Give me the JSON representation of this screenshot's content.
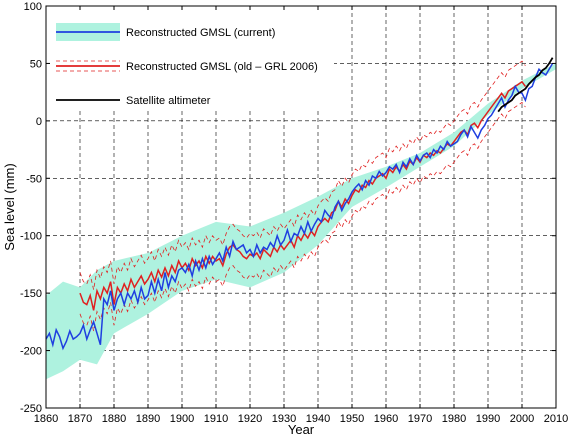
{
  "chart_data": {
    "type": "line",
    "xlabel": "Year",
    "ylabel": "Sea level (mm)",
    "xlim": [
      1860,
      2010
    ],
    "ylim": [
      -250,
      100
    ],
    "x_ticks": [
      1860,
      1870,
      1880,
      1890,
      1900,
      1910,
      1920,
      1930,
      1940,
      1950,
      1960,
      1970,
      1980,
      1990,
      2000,
      2010
    ],
    "y_ticks": [
      -250,
      -200,
      -150,
      -100,
      -50,
      0,
      50,
      100
    ],
    "grid": "dashed",
    "legend": {
      "placement": "top-left",
      "entries": [
        {
          "label": "Reconstructed GMSL (current)",
          "series": "current"
        },
        {
          "label": "Reconstructed GMSL (old – GRL 2006)",
          "series": "old"
        },
        {
          "label": "Satellite altimeter",
          "series": "satellite"
        }
      ]
    },
    "colors": {
      "current": "#1f3fe0",
      "band": "#aef2df",
      "old": "#e02020",
      "satellite": "#000000"
    },
    "bands": [
      {
        "series": "current",
        "x": [
          1860,
          1865,
          1870,
          1875,
          1880,
          1890,
          1900,
          1910,
          1920,
          1930,
          1940,
          1950,
          1960,
          1970,
          1980,
          1990,
          2000,
          2010
        ],
        "upper": [
          -152,
          -140,
          -145,
          -130,
          -122,
          -115,
          -100,
          -88,
          -92,
          -80,
          -66,
          -50,
          -40,
          -28,
          -10,
          15,
          35,
          50
        ],
        "lower": [
          -225,
          -218,
          -208,
          -212,
          -185,
          -168,
          -148,
          -138,
          -145,
          -132,
          -108,
          -75,
          -58,
          -40,
          -22,
          5,
          28,
          45
        ]
      }
    ],
    "series": [
      {
        "name": "Reconstructed GMSL (current)",
        "key": "current",
        "x": [
          1860,
          1861,
          1862,
          1863,
          1864,
          1865,
          1866,
          1867,
          1868,
          1869,
          1870,
          1871,
          1872,
          1873,
          1874,
          1875,
          1876,
          1877,
          1878,
          1879,
          1880,
          1881,
          1882,
          1883,
          1884,
          1885,
          1886,
          1887,
          1888,
          1889,
          1890,
          1891,
          1892,
          1893,
          1894,
          1895,
          1896,
          1897,
          1898,
          1899,
          1900,
          1901,
          1902,
          1903,
          1904,
          1905,
          1906,
          1907,
          1908,
          1909,
          1910,
          1911,
          1912,
          1913,
          1914,
          1915,
          1916,
          1917,
          1918,
          1919,
          1920,
          1921,
          1922,
          1923,
          1924,
          1925,
          1926,
          1927,
          1928,
          1929,
          1930,
          1931,
          1932,
          1933,
          1934,
          1935,
          1936,
          1937,
          1938,
          1939,
          1940,
          1941,
          1942,
          1943,
          1944,
          1945,
          1946,
          1947,
          1948,
          1949,
          1950,
          1951,
          1952,
          1953,
          1954,
          1955,
          1956,
          1957,
          1958,
          1959,
          1960,
          1961,
          1962,
          1963,
          1964,
          1965,
          1966,
          1967,
          1968,
          1969,
          1970,
          1971,
          1972,
          1973,
          1974,
          1975,
          1976,
          1977,
          1978,
          1979,
          1980,
          1981,
          1982,
          1983,
          1984,
          1985,
          1986,
          1987,
          1988,
          1989,
          1990,
          1991,
          1992,
          1993,
          1994,
          1995,
          1996,
          1997,
          1998,
          1999,
          2000,
          2001,
          2002,
          2003,
          2004,
          2005,
          2006,
          2007,
          2008,
          2009
        ],
        "y": [
          -190,
          -185,
          -195,
          -182,
          -188,
          -198,
          -192,
          -183,
          -190,
          -188,
          -185,
          -178,
          -190,
          -182,
          -175,
          -185,
          -195,
          -155,
          -160,
          -148,
          -165,
          -155,
          -150,
          -160,
          -150,
          -155,
          -148,
          -158,
          -145,
          -155,
          -152,
          -140,
          -150,
          -138,
          -148,
          -132,
          -145,
          -135,
          -140,
          -130,
          -128,
          -132,
          -125,
          -135,
          -122,
          -130,
          -120,
          -128,
          -118,
          -125,
          -120,
          -115,
          -122,
          -110,
          -118,
          -105,
          -112,
          -110,
          -108,
          -115,
          -112,
          -118,
          -108,
          -115,
          -110,
          -112,
          -106,
          -110,
          -100,
          -108,
          -104,
          -95,
          -105,
          -98,
          -100,
          -92,
          -98,
          -88,
          -96,
          -90,
          -85,
          -88,
          -78,
          -82,
          -85,
          -75,
          -70,
          -78,
          -72,
          -68,
          -62,
          -58,
          -55,
          -60,
          -52,
          -56,
          -48,
          -50,
          -44,
          -48,
          -45,
          -40,
          -42,
          -38,
          -45,
          -36,
          -40,
          -33,
          -38,
          -30,
          -35,
          -30,
          -28,
          -32,
          -25,
          -28,
          -22,
          -25,
          -18,
          -22,
          -20,
          -18,
          -12,
          -8,
          -14,
          -5,
          -10,
          -15,
          -8,
          -4,
          2,
          5,
          10,
          15,
          20,
          12,
          18,
          22,
          30,
          25,
          24,
          18,
          28,
          30,
          38,
          45,
          42,
          40,
          45,
          50
        ]
      },
      {
        "name": "Reconstructed GMSL (old – GRL 2006)",
        "key": "old",
        "x": [
          1870,
          1871,
          1872,
          1873,
          1874,
          1875,
          1876,
          1877,
          1878,
          1879,
          1880,
          1881,
          1882,
          1883,
          1884,
          1885,
          1886,
          1887,
          1888,
          1889,
          1890,
          1891,
          1892,
          1893,
          1894,
          1895,
          1896,
          1897,
          1898,
          1899,
          1900,
          1901,
          1902,
          1903,
          1904,
          1905,
          1906,
          1907,
          1908,
          1909,
          1910,
          1911,
          1912,
          1913,
          1914,
          1915,
          1916,
          1917,
          1918,
          1919,
          1920,
          1921,
          1922,
          1923,
          1924,
          1925,
          1926,
          1927,
          1928,
          1929,
          1930,
          1931,
          1932,
          1933,
          1934,
          1935,
          1936,
          1937,
          1938,
          1939,
          1940,
          1941,
          1942,
          1943,
          1944,
          1945,
          1946,
          1947,
          1948,
          1949,
          1950,
          1951,
          1952,
          1953,
          1954,
          1955,
          1956,
          1957,
          1958,
          1959,
          1960,
          1961,
          1962,
          1963,
          1964,
          1965,
          1966,
          1967,
          1968,
          1969,
          1970,
          1971,
          1972,
          1973,
          1974,
          1975,
          1976,
          1977,
          1978,
          1979,
          1980,
          1981,
          1982,
          1983,
          1984,
          1985,
          1986,
          1987,
          1988,
          1989,
          1990,
          1991,
          1992,
          1993,
          1994,
          1995,
          1996,
          1997,
          1998,
          1999,
          2000,
          2001
        ],
        "y": [
          -150,
          -158,
          -160,
          -152,
          -165,
          -148,
          -155,
          -145,
          -150,
          -140,
          -160,
          -145,
          -150,
          -142,
          -148,
          -138,
          -145,
          -140,
          -135,
          -142,
          -138,
          -132,
          -140,
          -130,
          -136,
          -128,
          -135,
          -126,
          -132,
          -122,
          -128,
          -124,
          -130,
          -120,
          -126,
          -122,
          -128,
          -118,
          -124,
          -118,
          -122,
          -120,
          -126,
          -116,
          -110,
          -108,
          -112,
          -114,
          -118,
          -120,
          -116,
          -118,
          -115,
          -120,
          -112,
          -115,
          -118,
          -110,
          -114,
          -108,
          -112,
          -108,
          -104,
          -110,
          -100,
          -104,
          -98,
          -102,
          -96,
          -100,
          -92,
          -88,
          -85,
          -88,
          -80,
          -78,
          -70,
          -75,
          -68,
          -72,
          -65,
          -60,
          -62,
          -56,
          -58,
          -52,
          -55,
          -50,
          -48,
          -46,
          -50,
          -42,
          -45,
          -40,
          -44,
          -38,
          -42,
          -35,
          -38,
          -32,
          -36,
          -30,
          -32,
          -28,
          -30,
          -26,
          -28,
          -24,
          -20,
          -22,
          -18,
          -14,
          -10,
          -8,
          -12,
          -4,
          -2,
          -6,
          0,
          4,
          8,
          12,
          16,
          20,
          24,
          20,
          26,
          28,
          30,
          32,
          34,
          30
        ]
      },
      {
        "name": "Satellite altimeter",
        "key": "satellite",
        "x": [
          1993,
          1994,
          1995,
          1996,
          1997,
          1998,
          1999,
          2000,
          2001,
          2002,
          2003,
          2004,
          2005,
          2006,
          2007,
          2008,
          2009
        ],
        "y": [
          8,
          12,
          14,
          16,
          18,
          22,
          24,
          26,
          28,
          32,
          35,
          38,
          40,
          44,
          46,
          50,
          55
        ]
      }
    ]
  }
}
